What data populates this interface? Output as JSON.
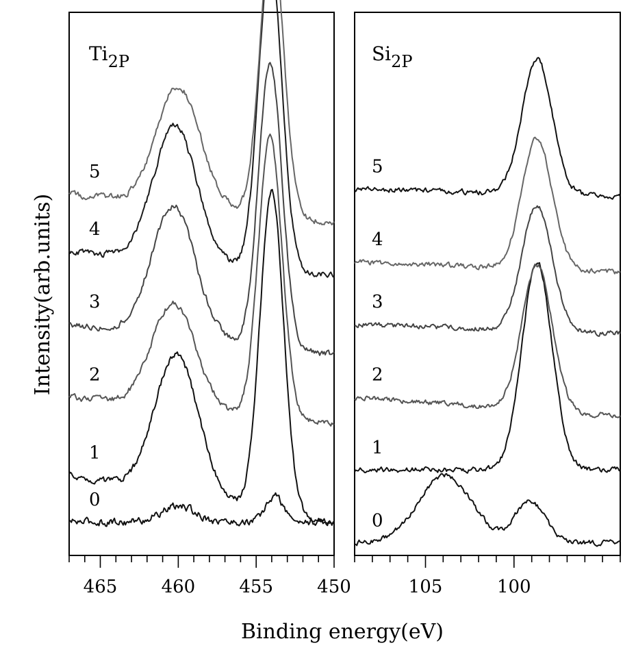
{
  "chart_data": [
    {
      "type": "line",
      "title_main": "Ti",
      "title_sub": "2P",
      "xlim": [
        467,
        450
      ],
      "major_ticks": [
        465,
        460,
        455,
        450
      ],
      "minor_step": 1,
      "series": [
        {
          "name": "0",
          "color": "#111111",
          "base": 0.05,
          "noise": 0.006,
          "slope": -2e-05,
          "peaks": [
            [
              460.0,
              1.1,
              0.03
            ],
            [
              453.8,
              0.55,
              0.05
            ]
          ]
        },
        {
          "name": "1",
          "color": "#111111",
          "base": 0.14,
          "noise": 0.005,
          "slope": -0.0055,
          "peaks": [
            [
              460.1,
              1.4,
              0.27
            ],
            [
              454.0,
              0.75,
              0.62
            ]
          ]
        },
        {
          "name": "2",
          "color": "#555555",
          "base": 0.29,
          "noise": 0.005,
          "slope": -0.003,
          "peaks": [
            [
              460.3,
              1.4,
              0.2
            ],
            [
              454.1,
              0.75,
              0.54
            ]
          ]
        },
        {
          "name": "3",
          "color": "#444444",
          "base": 0.43,
          "noise": 0.005,
          "slope": -0.0035,
          "peaks": [
            [
              460.3,
              1.4,
              0.25
            ],
            [
              454.1,
              0.75,
              0.55
            ]
          ]
        },
        {
          "name": "4",
          "color": "#1a1a1a",
          "base": 0.57,
          "noise": 0.005,
          "slope": -0.0028,
          "peaks": [
            [
              460.2,
              1.4,
              0.26
            ],
            [
              454.1,
              0.75,
              0.6
            ]
          ]
        },
        {
          "name": "5",
          "color": "#666666",
          "base": 0.68,
          "noise": 0.005,
          "slope": -0.0033,
          "peaks": [
            [
              460.0,
              1.4,
              0.23
            ],
            [
              454.0,
              0.75,
              0.55
            ]
          ]
        }
      ],
      "labels": [
        "0",
        "1",
        "2",
        "3",
        "4",
        "5"
      ]
    },
    {
      "type": "line",
      "title_main": "Si",
      "title_sub": "2P",
      "xlim": [
        109,
        94
      ],
      "major_ticks": [
        105,
        100
      ],
      "minor_step": 1,
      "series": [
        {
          "name": "0",
          "color": "#111111",
          "base": 0.01,
          "noise": 0.004,
          "slope": 0.0,
          "peaks": [
            [
              103.9,
              1.5,
              0.13
            ],
            [
              99.1,
              0.85,
              0.08
            ]
          ]
        },
        {
          "name": "1",
          "color": "#111111",
          "base": 0.15,
          "noise": 0.004,
          "slope": 0.0,
          "peaks": [
            [
              98.7,
              0.85,
              0.4
            ]
          ]
        },
        {
          "name": "2",
          "color": "#555555",
          "base": 0.29,
          "noise": 0.004,
          "slope": -0.0025,
          "peaks": [
            [
              98.7,
              0.85,
              0.28
            ]
          ]
        },
        {
          "name": "3",
          "color": "#444444",
          "base": 0.43,
          "noise": 0.004,
          "slope": -0.0012,
          "peaks": [
            [
              98.7,
              0.85,
              0.24
            ]
          ]
        },
        {
          "name": "4",
          "color": "#666666",
          "base": 0.55,
          "noise": 0.004,
          "slope": -0.0014,
          "peaks": [
            [
              98.7,
              0.85,
              0.25
            ]
          ]
        },
        {
          "name": "5",
          "color": "#111111",
          "base": 0.69,
          "noise": 0.004,
          "slope": -0.001,
          "peaks": [
            [
              98.7,
              0.85,
              0.26
            ]
          ]
        }
      ],
      "labels": [
        "0",
        "1",
        "2",
        "3",
        "4",
        "5"
      ]
    }
  ],
  "ylabel": "Intensity(arb.units)",
  "xlabel": "Binding energy(eV)"
}
